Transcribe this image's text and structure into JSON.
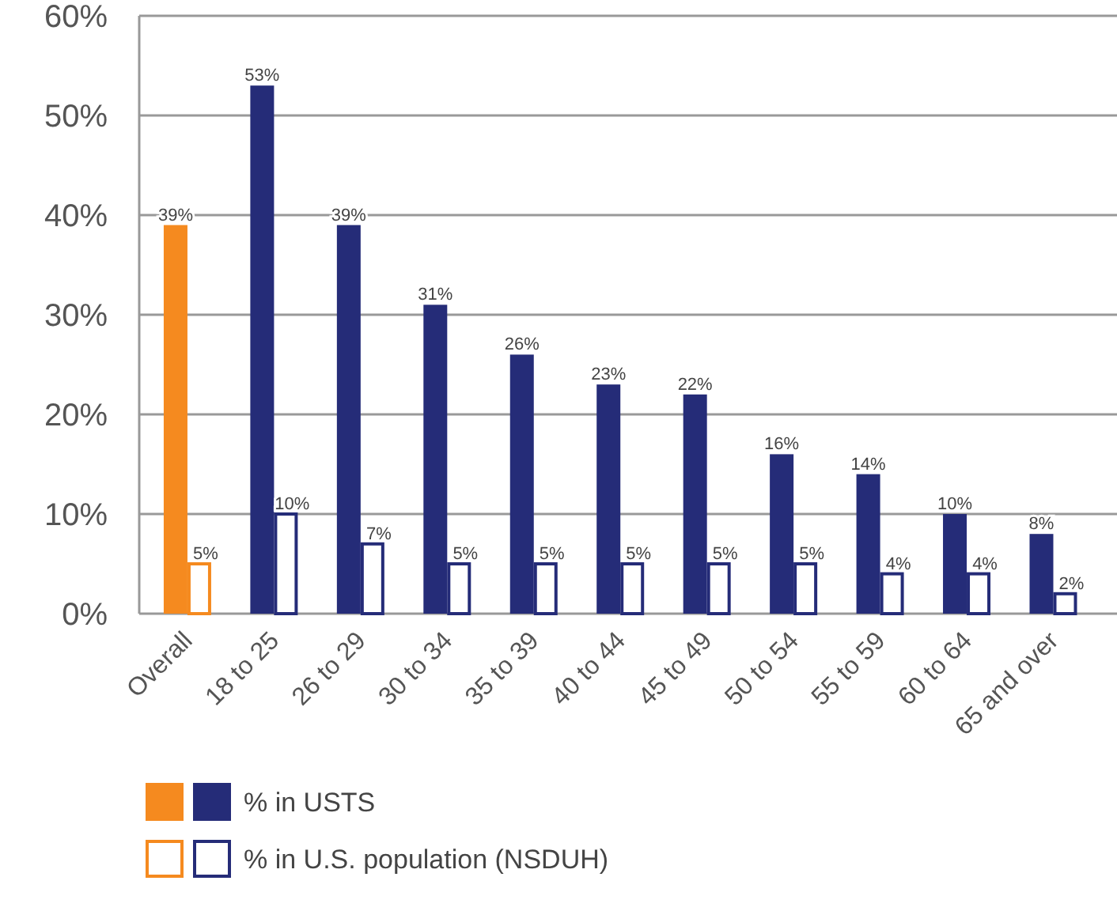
{
  "chart_data": {
    "type": "bar",
    "categories": [
      "Overall",
      "18 to 25",
      "26 to 29",
      "30 to 34",
      "35 to 39",
      "40 to 44",
      "45 to 49",
      "50 to 54",
      "55 to 59",
      "60 to 64",
      "65 and over"
    ],
    "series": [
      {
        "name": "% in USTS",
        "colors": [
          "#f58a1f",
          "#252c78",
          "#252c78",
          "#252c78",
          "#252c78",
          "#252c78",
          "#252c78",
          "#252c78",
          "#252c78",
          "#252c78",
          "#252c78"
        ],
        "values": [
          39,
          53,
          39,
          31,
          26,
          23,
          22,
          16,
          14,
          10,
          8
        ],
        "value_labels": [
          "39%",
          "53%",
          "39%",
          "31%",
          "26%",
          "23%",
          "22%",
          "16%",
          "14%",
          "10%",
          "8%"
        ]
      },
      {
        "name": "% in U.S. population (NSDUH)",
        "colors": [
          "#f58a1f",
          "#252c78",
          "#252c78",
          "#252c78",
          "#252c78",
          "#252c78",
          "#252c78",
          "#252c78",
          "#252c78",
          "#252c78",
          "#252c78"
        ],
        "values": [
          5,
          10,
          7,
          5,
          5,
          5,
          5,
          5,
          4,
          4,
          2
        ],
        "value_labels": [
          "5%",
          "10%",
          "7%",
          "5%",
          "5%",
          "5%",
          "5%",
          "5%",
          "4%",
          "4%",
          "2%"
        ]
      }
    ],
    "ylim": [
      0,
      60
    ],
    "yticks": [
      {
        "value": 0,
        "label": "0%"
      },
      {
        "value": 10,
        "label": "10%"
      },
      {
        "value": 20,
        "label": "20%"
      },
      {
        "value": 30,
        "label": "30%"
      },
      {
        "value": 40,
        "label": "40%"
      },
      {
        "value": 50,
        "label": "50%"
      },
      {
        "value": 60,
        "label": "60%"
      }
    ],
    "grid": "y",
    "legend": "bottom left"
  }
}
